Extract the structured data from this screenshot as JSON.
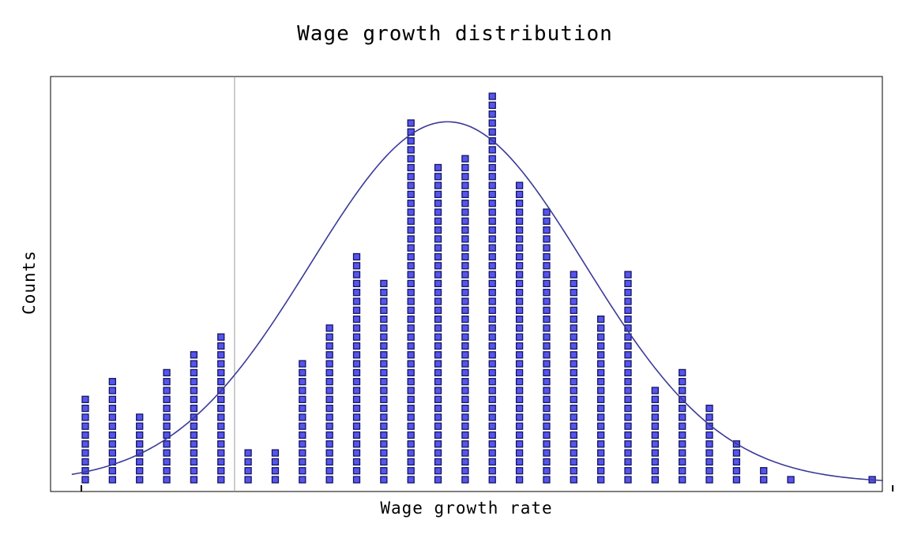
{
  "chart_data": {
    "type": "bar",
    "style": "stacked-square-dot-histogram",
    "title": "Wage growth distribution",
    "xlabel": "Wage growth rate",
    "ylabel": "Counts",
    "bins": [
      1,
      2,
      3,
      4,
      5,
      6,
      7,
      8,
      9,
      10,
      11,
      12,
      13,
      14,
      15,
      16,
      17,
      18,
      19,
      20,
      21,
      22,
      23,
      24,
      25,
      26,
      27,
      28,
      29,
      30
    ],
    "counts": [
      10,
      12,
      8,
      13,
      15,
      17,
      4,
      4,
      14,
      18,
      26,
      23,
      41,
      36,
      37,
      44,
      34,
      31,
      24,
      19,
      24,
      11,
      13,
      9,
      5,
      2,
      1,
      0,
      0,
      1
    ],
    "ylim": [
      0,
      45
    ],
    "reference_line_x": 6.5,
    "fitted_curve": {
      "type": "normal",
      "mean": 14.35,
      "sd": 5.05,
      "peak": 40.5
    },
    "x_ticks_labeled": false,
    "y_ticks_labeled": false,
    "grid": false,
    "marker_color": "#5555ee",
    "marker_edge_color": "#151560",
    "curve_color": "#3a3a99",
    "reference_line_color": "#9a9a9a"
  }
}
